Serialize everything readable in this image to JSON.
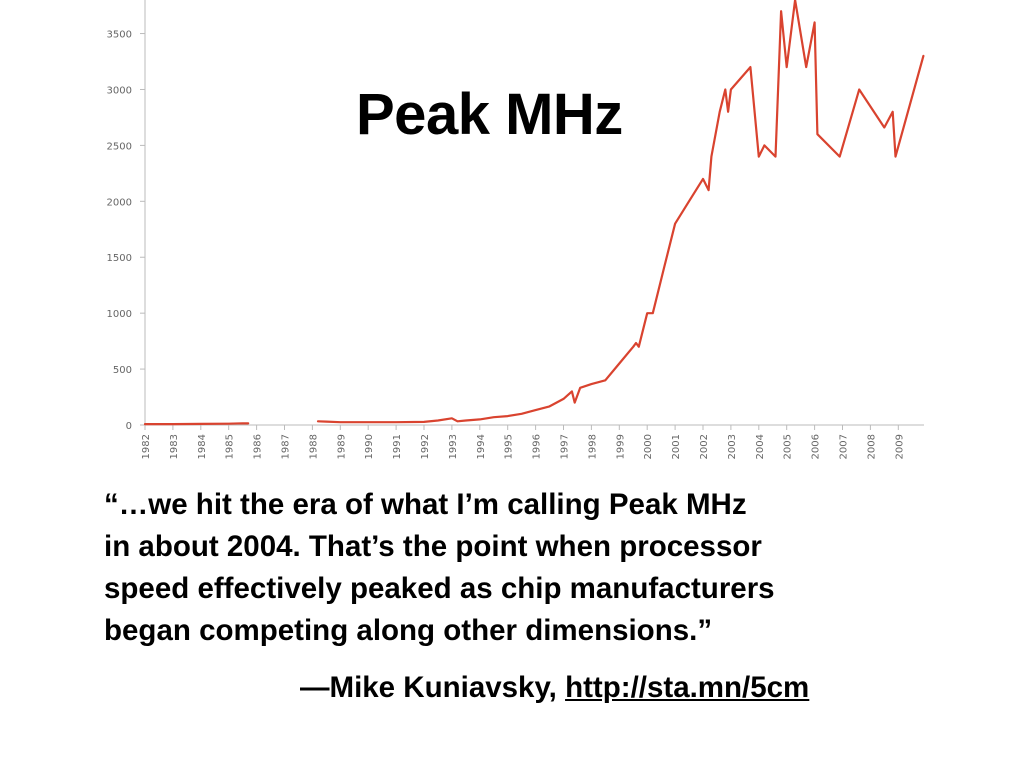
{
  "chart_data": {
    "type": "line",
    "title": "Peak MHz",
    "xlabel": "",
    "ylabel": "",
    "ylim": [
      0,
      3800
    ],
    "xlim": [
      1982,
      2009.9
    ],
    "y_ticks": [
      0,
      500,
      1000,
      1500,
      2000,
      2500,
      3000,
      3500
    ],
    "x_ticks": [
      "1982",
      "1983",
      "1984",
      "1985",
      "1986",
      "1987",
      "1988",
      "1989",
      "1990",
      "1991",
      "1992",
      "1993",
      "1994",
      "1995",
      "1996",
      "1997",
      "1998",
      "1999",
      "2000",
      "2001",
      "2002",
      "2003",
      "2004",
      "2005",
      "2006",
      "2007",
      "2008",
      "2009"
    ],
    "grid": false,
    "legend": "none",
    "series": [
      {
        "color": "#d9432f",
        "segments": [
          [
            [
              1982.0,
              8
            ],
            [
              1983.0,
              8
            ],
            [
              1984.0,
              10
            ],
            [
              1985.0,
              12
            ],
            [
              1985.5,
              15
            ],
            [
              1985.7,
              14
            ]
          ],
          [
            [
              1988.2,
              33
            ],
            [
              1988.5,
              30
            ],
            [
              1989.0,
              25
            ],
            [
              1990.0,
              25
            ],
            [
              1991.0,
              25
            ],
            [
              1992.0,
              28
            ],
            [
              1992.5,
              40
            ],
            [
              1993.0,
              60
            ],
            [
              1993.2,
              33
            ],
            [
              1993.5,
              40
            ],
            [
              1994.0,
              50
            ],
            [
              1994.5,
              70
            ],
            [
              1995.0,
              80
            ],
            [
              1995.5,
              100
            ],
            [
              1996.0,
              133
            ],
            [
              1996.5,
              166
            ],
            [
              1997.0,
              233
            ],
            [
              1997.3,
              300
            ],
            [
              1997.4,
              200
            ],
            [
              1997.6,
              333
            ],
            [
              1998.0,
              366
            ],
            [
              1998.5,
              400
            ],
            [
              1999.0,
              550
            ],
            [
              1999.5,
              700
            ],
            [
              1999.6,
              733
            ],
            [
              1999.7,
              700
            ],
            [
              2000.0,
              1000
            ],
            [
              2000.2,
              1000
            ],
            [
              2000.6,
              1400
            ],
            [
              2001.0,
              1800
            ],
            [
              2001.5,
              2000
            ],
            [
              2002.0,
              2200
            ],
            [
              2002.2,
              2100
            ],
            [
              2002.3,
              2400
            ],
            [
              2002.6,
              2800
            ],
            [
              2002.8,
              3000
            ],
            [
              2002.9,
              2800
            ],
            [
              2003.0,
              3000
            ],
            [
              2003.7,
              3200
            ],
            [
              2004.0,
              2400
            ],
            [
              2004.2,
              2500
            ],
            [
              2004.6,
              2400
            ],
            [
              2004.8,
              3700
            ],
            [
              2005.0,
              3200
            ],
            [
              2005.3,
              3800
            ],
            [
              2005.7,
              3200
            ],
            [
              2006.0,
              3600
            ],
            [
              2006.1,
              2600
            ],
            [
              2006.9,
              2400
            ],
            [
              2007.6,
              3000
            ],
            [
              2008.5,
              2660
            ],
            [
              2008.8,
              2800
            ],
            [
              2008.9,
              2400
            ],
            [
              2009.9,
              3300
            ]
          ]
        ]
      }
    ]
  },
  "quote": {
    "lines": [
      "“…we hit the era of what I’m calling Peak MHz",
      "in about 2004. That’s the point when processor",
      "speed effectively peaked as chip manufacturers",
      "began competing along other dimensions.”"
    ],
    "attribution_prefix": "—Mike Kuniavsky, ",
    "link_text": "http://sta.mn/5cm"
  }
}
